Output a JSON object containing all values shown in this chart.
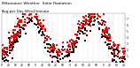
{
  "title": "Milwaukee Weather  Solar Radiation",
  "subtitle": "Avg per Day W/m2/minute",
  "background": "#ffffff",
  "plot_bg": "#ffffff",
  "ylim": [
    0,
    800
  ],
  "ytick_positions": [
    100,
    200,
    300,
    400,
    500,
    600,
    700
  ],
  "ytick_labels": [
    "1",
    "2",
    "3",
    "4",
    "5",
    "6",
    "7"
  ],
  "title_fontsize": 3.2,
  "tick_fontsize": 2.2,
  "dot_size": 0.6,
  "red_color": "#ff0000",
  "black_color": "#000000",
  "grid_color": "#bbbbbb",
  "n_days": 730,
  "random_seed": 17
}
